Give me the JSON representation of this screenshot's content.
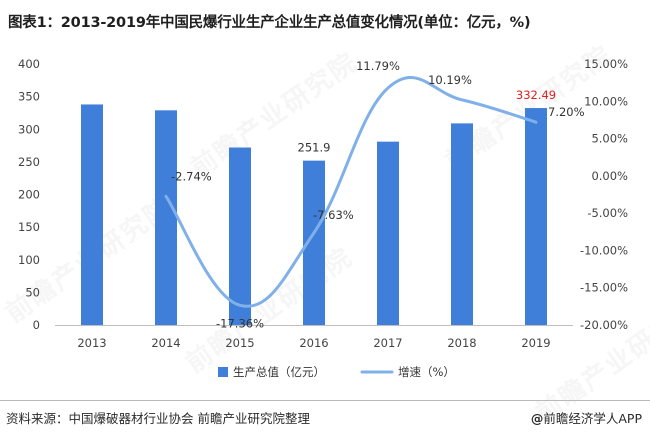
{
  "title": "图表1：2013-2019年中国民爆行业生产企业生产总值变化情况(单位：亿元，%)",
  "watermark": "前瞻产业研究院",
  "footer": {
    "source": "资料来源：中国爆破器材行业协会 前瞻产业研究院整理",
    "brand_symbol": "@",
    "brand": "前瞻经济学人APP"
  },
  "colors": {
    "bar": "#3f7fd9",
    "line": "#7fb0ea",
    "highlight": "#e02020",
    "axis_text": "#444444",
    "grid": "#d9d9d9"
  },
  "chart_data": {
    "type": "bar+line",
    "categories": [
      "2013",
      "2014",
      "2015",
      "2016",
      "2017",
      "2018",
      "2019"
    ],
    "series": [
      {
        "name": "生产总值（亿元）",
        "type": "bar",
        "axis": "left",
        "values": [
          338,
          329,
          272,
          251.9,
          281,
          309,
          332.49
        ]
      },
      {
        "name": "增速（%）",
        "type": "line",
        "axis": "right",
        "values": [
          null,
          -2.74,
          -17.36,
          -7.63,
          11.79,
          10.19,
          7.2
        ]
      }
    ],
    "bar_labels": [
      {
        "index": 3,
        "text": "251.9",
        "highlight": false
      },
      {
        "index": 6,
        "text": "332.49",
        "highlight": true
      }
    ],
    "line_labels": [
      "",
      "-2.74%",
      "-17.36%",
      "-7.63%",
      "11.79%",
      "10.19%",
      "7.20%"
    ],
    "y_left": {
      "min": 0,
      "max": 400,
      "step": 50,
      "ticks": [
        "0",
        "50",
        "100",
        "150",
        "200",
        "250",
        "300",
        "350",
        "400"
      ]
    },
    "y_right": {
      "min": -20,
      "max": 15,
      "step": 5,
      "ticks": [
        "-20.00%",
        "-15.00%",
        "-10.00%",
        "-5.00%",
        "0.00%",
        "5.00%",
        "10.00%",
        "15.00%"
      ]
    },
    "legend": [
      "生产总值（亿元）",
      "增速（%）"
    ],
    "grid": false,
    "legend_position": "bottom"
  }
}
